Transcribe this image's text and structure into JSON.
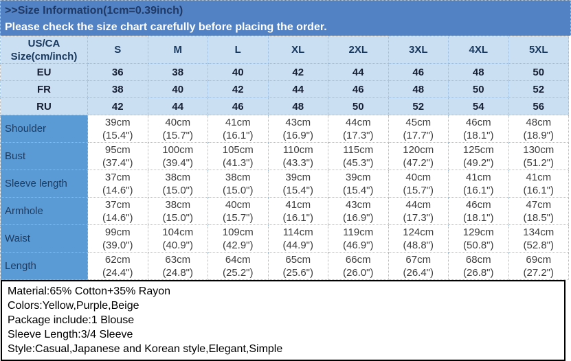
{
  "banner": {
    "title": ">>Size Information(1cm=0.39inch)",
    "subtitle": "Please check the size chart carefully before placing the order."
  },
  "colors": {
    "banner_bg": "#5282c3",
    "banner_title_text": "#1f3864",
    "banner_subtitle_text": "#ffffff",
    "header_cell_bg": "#cbdff2",
    "label_column_bg": "#5b9bd5",
    "data_cell_bg": "#ffffff",
    "details_border": "#000000"
  },
  "size_table": {
    "corner_header_line1": "US/CA",
    "corner_header_line2": "Size(cm/inch)",
    "sizes": [
      "S",
      "M",
      "L",
      "XL",
      "2XL",
      "3XL",
      "4XL",
      "5XL"
    ],
    "region_rows": [
      {
        "label": "EU",
        "values": [
          "36",
          "38",
          "40",
          "42",
          "44",
          "46",
          "48",
          "50"
        ]
      },
      {
        "label": "FR",
        "values": [
          "38",
          "40",
          "42",
          "44",
          "46",
          "48",
          "50",
          "52"
        ]
      },
      {
        "label": "RU",
        "values": [
          "42",
          "44",
          "46",
          "48",
          "50",
          "52",
          "54",
          "56"
        ]
      }
    ],
    "measurement_rows": [
      {
        "label": "Shoulder",
        "cm": [
          "39cm",
          "40cm",
          "41cm",
          "43cm",
          "44cm",
          "45cm",
          "46cm",
          "48cm"
        ],
        "inch": [
          "(15.4\")",
          "(15.7\")",
          "(16.1\")",
          "(16.9\")",
          "(17.3\")",
          "(17.7\")",
          "(18.1\")",
          "(18.9\")"
        ]
      },
      {
        "label": "Bust",
        "cm": [
          "95cm",
          "100cm",
          "105cm",
          "110cm",
          "115cm",
          "120cm",
          "125cm",
          "130cm"
        ],
        "inch": [
          "(37.4\")",
          "(39.4\")",
          "(41.3\")",
          "(43.3\")",
          "(45.3\")",
          "(47.2\")",
          "(49.2\")",
          "(51.2\")"
        ]
      },
      {
        "label": "Sleeve length",
        "cm": [
          "37cm",
          "38cm",
          "38cm",
          "39cm",
          "39cm",
          "40cm",
          "41cm",
          "41cm"
        ],
        "inch": [
          "(14.6\")",
          "(15.0\")",
          "(15.0\")",
          "(15.4\")",
          "(15.4\")",
          "(15.7\")",
          "(16.1\")",
          "(16.1\")"
        ]
      },
      {
        "label": "Armhole",
        "cm": [
          "37cm",
          "38cm",
          "40cm",
          "41cm",
          "43cm",
          "44cm",
          "46cm",
          "47cm"
        ],
        "inch": [
          "(14.6\")",
          "(15.0\")",
          "(15.7\")",
          "(16.1\")",
          "(16.9\")",
          "(17.3\")",
          "(18.1\")",
          "(18.5\")"
        ]
      },
      {
        "label": "Waist",
        "cm": [
          "99cm",
          "104cm",
          "109cm",
          "114cm",
          "119cm",
          "124cm",
          "129cm",
          "134cm"
        ],
        "inch": [
          "(39.0\")",
          "(40.9\")",
          "(42.9\")",
          "(44.9\")",
          "(46.9\")",
          "(48.8\")",
          "(50.8\")",
          "(52.8\")"
        ]
      },
      {
        "label": "Length",
        "cm": [
          "62cm",
          "63cm",
          "64cm",
          "65cm",
          "66cm",
          "67cm",
          "68cm",
          "69cm"
        ],
        "inch": [
          "(24.4\")",
          "(24.8\")",
          "(25.2\")",
          "(25.6\")",
          "(26.0\")",
          "(26.4\")",
          "(26.8\")",
          "(27.2\")"
        ]
      }
    ]
  },
  "details": {
    "lines": [
      "Material:65% Cotton+35% Rayon",
      "Colors:Yellow,Purple,Beige",
      "Package include:1 Blouse",
      "Sleeve Length:3/4 Sleeve",
      "Style:Casual,Japanese and Korean style,Elegant,Simple"
    ]
  }
}
